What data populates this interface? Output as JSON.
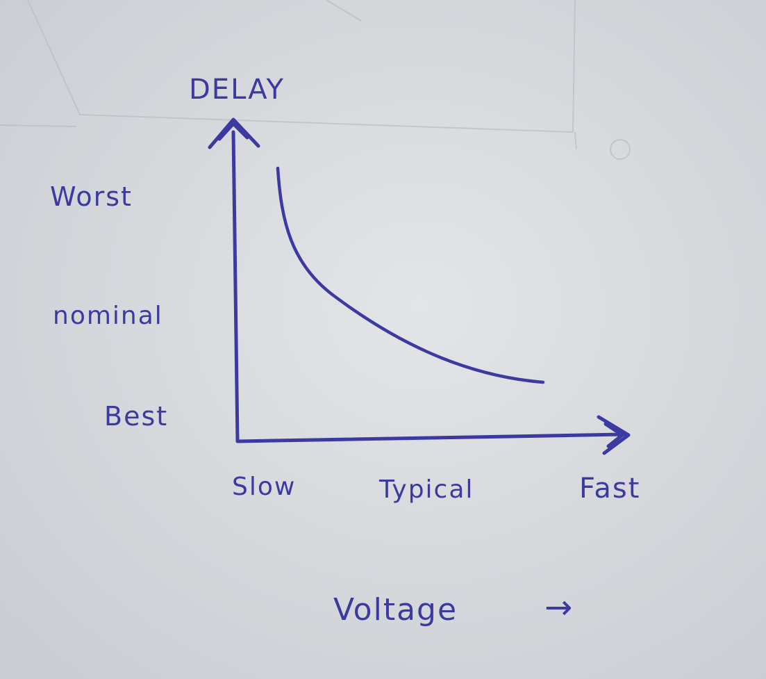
{
  "diagram": {
    "y_axis_label": "DELAY",
    "y_levels": [
      "Worst",
      "nominal",
      "Best"
    ],
    "x_levels": [
      "Slow",
      "Typical",
      "Fast"
    ],
    "x_axis_label": "Voltage",
    "x_axis_arrow": "→",
    "colors": {
      "ink": "#3c3aa0",
      "paper": "#d8dbdf",
      "faint_pencil": "#bfc3c8"
    },
    "curve": {
      "shape": "decreasing",
      "points": [
        {
          "x": "Slow",
          "y": "Worst"
        },
        {
          "x": "Typical",
          "y": "nominal"
        },
        {
          "x": "Fast",
          "y": "Best"
        }
      ]
    }
  }
}
